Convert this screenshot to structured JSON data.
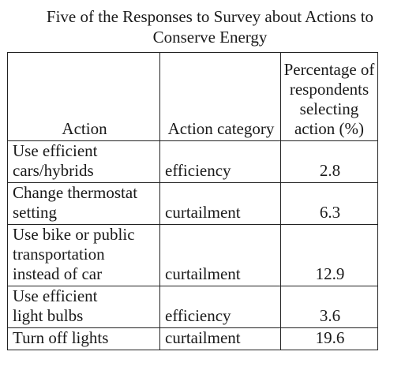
{
  "title_line1": "Five of the Responses to Survey about Actions to",
  "title_line2": "Conserve Energy",
  "headers": {
    "action": "Action",
    "category": "Action category",
    "percent_line1": "Percentage of",
    "percent_line2": "respondents",
    "percent_line3": "selecting",
    "percent_line4": "action (%)"
  },
  "rows": [
    {
      "action_lines": [
        "Use efficient",
        "cars/hybrids"
      ],
      "category": "efficiency",
      "percent": "2.8"
    },
    {
      "action_lines": [
        "Change thermostat",
        "setting"
      ],
      "category": "curtailment",
      "percent": "6.3"
    },
    {
      "action_lines": [
        "Use bike or public",
        "transportation",
        "instead of car"
      ],
      "category": "curtailment",
      "percent": "12.9"
    },
    {
      "action_lines": [
        "Use efficient",
        "light bulbs"
      ],
      "category": "efficiency",
      "percent": "3.6"
    },
    {
      "action_lines": [
        "Turn off lights"
      ],
      "category": "curtailment",
      "percent": "19.6"
    }
  ]
}
